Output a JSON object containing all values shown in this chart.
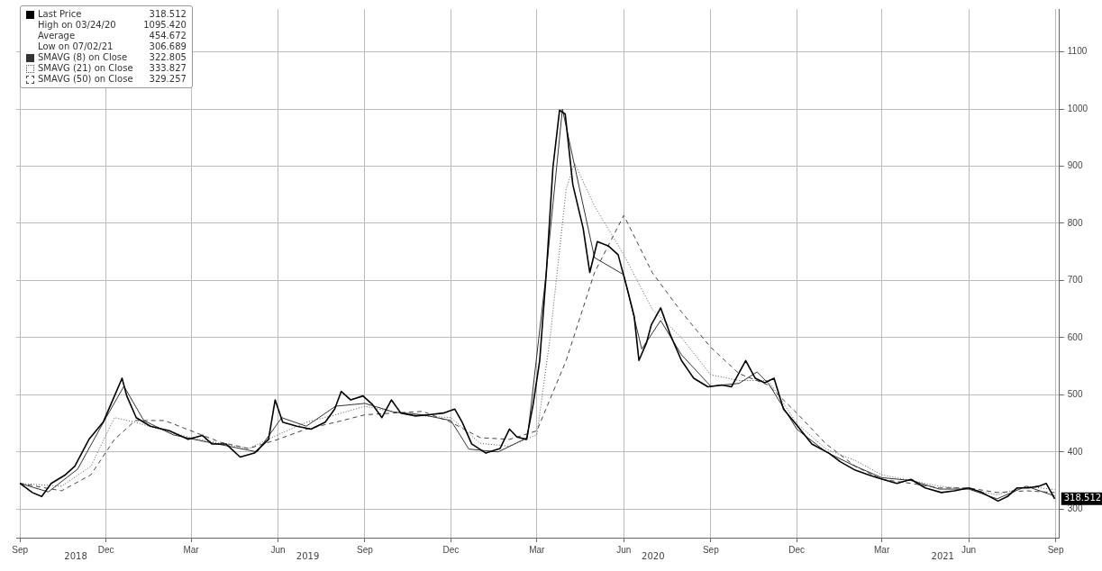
{
  "chart_data": {
    "type": "line",
    "grid": true,
    "legend": "top left",
    "marker": "none",
    "ylim": [
      250,
      1175
    ],
    "yticks": [
      300,
      400,
      500,
      600,
      700,
      800,
      900,
      1000,
      1100
    ],
    "xlim": [
      "2018-08-28",
      "2021-09-05"
    ],
    "xticks": [
      {
        "value": "2018-09-01",
        "label": "Sep"
      },
      {
        "value": "2018-12-01",
        "label": "Dec"
      },
      {
        "value": "2019-03-01",
        "label": "Mar"
      },
      {
        "value": "2019-06-01",
        "label": "Jun"
      },
      {
        "value": "2019-09-01",
        "label": "Sep"
      },
      {
        "value": "2019-12-01",
        "label": "Dec"
      },
      {
        "value": "2020-03-01",
        "label": "Mar"
      },
      {
        "value": "2020-06-01",
        "label": "Jun"
      },
      {
        "value": "2020-09-01",
        "label": "Sep"
      },
      {
        "value": "2020-12-01",
        "label": "Dec"
      },
      {
        "value": "2021-03-01",
        "label": "Mar"
      },
      {
        "value": "2021-06-01",
        "label": "Jun"
      },
      {
        "value": "2021-09-01",
        "label": "Sep"
      }
    ],
    "annotations": [
      "318.512",
      "High on 03/24/20",
      "1095.420",
      "Average",
      "454.672",
      "Low on 07/02/21",
      "306.689",
      "322.805",
      "333.827",
      "329.257",
      "318.512",
      "2018",
      "2019",
      "2020",
      "2021"
    ],
    "series": [
      {
        "name": "Last Price",
        "color": "#000000",
        "line_style": "solid",
        "x": [
          "2018-09-01",
          "2018-09-14",
          "2018-09-24",
          "2018-10-04",
          "2018-10-19",
          "2018-10-29",
          "2018-11-13",
          "2018-11-28",
          "2018-12-10",
          "2018-12-18",
          "2018-12-23",
          "2019-01-02",
          "2019-01-17",
          "2019-02-06",
          "2019-02-26",
          "2019-03-13",
          "2019-03-23",
          "2019-04-07",
          "2019-04-22",
          "2019-05-07",
          "2019-05-22",
          "2019-05-29",
          "2019-06-06",
          "2019-06-21",
          "2019-07-06",
          "2019-07-21",
          "2019-07-31",
          "2019-08-07",
          "2019-08-17",
          "2019-08-30",
          "2019-09-09",
          "2019-09-19",
          "2019-09-29",
          "2019-10-09",
          "2019-10-24",
          "2019-11-08",
          "2019-11-23",
          "2019-12-05",
          "2019-12-13",
          "2019-12-23",
          "2020-01-07",
          "2020-01-22",
          "2020-02-01",
          "2020-02-09",
          "2020-02-19",
          "2020-02-26",
          "2020-03-04",
          "2020-03-11",
          "2020-03-18",
          "2020-03-25",
          "2020-03-31",
          "2020-04-08",
          "2020-04-19",
          "2020-04-26",
          "2020-05-04",
          "2020-05-16",
          "2020-05-26",
          "2020-06-05",
          "2020-06-12",
          "2020-06-17",
          "2020-06-25",
          "2020-06-30",
          "2020-07-10",
          "2020-07-20",
          "2020-08-01",
          "2020-08-14",
          "2020-08-29",
          "2020-09-13",
          "2020-09-23",
          "2020-10-08",
          "2020-10-18",
          "2020-10-28",
          "2020-11-07",
          "2020-11-17",
          "2020-12-02",
          "2020-12-17",
          "2021-01-04",
          "2021-01-16",
          "2021-02-01",
          "2021-02-15",
          "2021-03-02",
          "2021-03-17",
          "2021-04-01",
          "2021-04-16",
          "2021-05-03",
          "2021-05-17",
          "2021-06-01",
          "2021-06-15",
          "2021-07-02",
          "2021-07-12",
          "2021-07-22",
          "2021-08-03",
          "2021-08-14",
          "2021-08-22",
          "2021-08-31"
        ],
        "values": [
          345,
          329,
          322,
          345,
          360,
          375,
          422,
          452,
          498,
          529,
          498,
          460,
          445,
          437,
          422,
          429,
          414,
          414,
          391,
          398,
          422,
          491,
          452,
          445,
          440,
          452,
          475,
          506,
          491,
          498,
          483,
          460,
          491,
          468,
          463,
          465,
          468,
          475,
          452,
          414,
          398,
          406,
          440,
          426,
          422,
          483,
          560,
          714,
          898,
          998,
          991,
          868,
          791,
          714,
          768,
          760,
          745,
          683,
          637,
          560,
          591,
          622,
          652,
          606,
          560,
          529,
          514,
          517,
          514,
          560,
          529,
          521,
          529,
          475,
          445,
          414,
          398,
          383,
          368,
          360,
          352,
          345,
          352,
          337,
          329,
          332,
          337,
          329,
          314,
          322,
          337,
          337,
          340,
          345,
          318
        ]
      },
      {
        "name": "SMAVG (8)  on Close",
        "color": "#333333",
        "line_style": "solid",
        "x": [
          "2018-09-01",
          "2018-10-01",
          "2018-11-01",
          "2018-12-01",
          "2018-12-20",
          "2019-01-10",
          "2019-02-10",
          "2019-03-10",
          "2019-04-10",
          "2019-05-10",
          "2019-06-05",
          "2019-07-01",
          "2019-08-01",
          "2019-09-01",
          "2019-10-01",
          "2019-11-01",
          "2019-12-01",
          "2019-12-20",
          "2020-01-20",
          "2020-02-20",
          "2020-03-10",
          "2020-03-28",
          "2020-04-10",
          "2020-05-01",
          "2020-06-01",
          "2020-06-20",
          "2020-07-10",
          "2020-08-01",
          "2020-09-01",
          "2020-10-01",
          "2020-10-20",
          "2020-11-01",
          "2020-12-01",
          "2021-01-01",
          "2021-02-01",
          "2021-03-01",
          "2021-04-01",
          "2021-05-01",
          "2021-06-01",
          "2021-07-01",
          "2021-08-01",
          "2021-08-31"
        ],
        "values": [
          345,
          330,
          370,
          460,
          515,
          455,
          430,
          420,
          410,
          400,
          460,
          445,
          480,
          485,
          470,
          465,
          455,
          405,
          400,
          425,
          700,
          1000,
          900,
          740,
          710,
          580,
          630,
          570,
          515,
          520,
          540,
          520,
          440,
          400,
          375,
          355,
          350,
          335,
          335,
          318,
          340,
          323
        ]
      },
      {
        "name": "SMAVG (21)  on Close",
        "color": "#555555",
        "line_style": "dotted",
        "x": [
          "2018-09-01",
          "2018-10-15",
          "2018-11-15",
          "2018-12-10",
          "2019-01-01",
          "2019-02-01",
          "2019-03-01",
          "2019-04-01",
          "2019-05-01",
          "2019-06-01",
          "2019-07-01",
          "2019-08-01",
          "2019-09-01",
          "2019-10-01",
          "2019-11-01",
          "2019-12-01",
          "2020-01-01",
          "2020-02-01",
          "2020-03-01",
          "2020-03-15",
          "2020-04-01",
          "2020-04-10",
          "2020-05-01",
          "2020-06-01",
          "2020-07-01",
          "2020-08-01",
          "2020-09-01",
          "2020-10-01",
          "2020-11-01",
          "2020-12-01",
          "2021-01-01",
          "2021-02-01",
          "2021-03-01",
          "2021-04-01",
          "2021-05-01",
          "2021-06-01",
          "2021-07-01",
          "2021-08-01",
          "2021-08-31"
        ],
        "values": [
          345,
          340,
          375,
          460,
          452,
          437,
          425,
          415,
          406,
          430,
          452,
          465,
          480,
          470,
          463,
          460,
          415,
          410,
          430,
          600,
          860,
          905,
          830,
          745,
          650,
          600,
          535,
          525,
          525,
          450,
          405,
          385,
          360,
          350,
          340,
          335,
          325,
          340,
          334
        ]
      },
      {
        "name": "SMAVG (50)  on Close",
        "color": "#444444",
        "line_style": "dashed",
        "x": [
          "2018-09-01",
          "2018-10-15",
          "2018-11-15",
          "2018-12-10",
          "2019-01-01",
          "2019-02-01",
          "2019-03-01",
          "2019-04-01",
          "2019-05-01",
          "2019-06-01",
          "2019-07-01",
          "2019-08-01",
          "2019-09-01",
          "2019-10-01",
          "2019-11-01",
          "2019-12-01",
          "2020-01-01",
          "2020-02-01",
          "2020-03-01",
          "2020-04-01",
          "2020-05-01",
          "2020-06-01",
          "2020-07-01",
          "2020-08-01",
          "2020-09-01",
          "2020-10-01",
          "2020-11-01",
          "2020-12-01",
          "2021-01-01",
          "2021-02-01",
          "2021-03-01",
          "2021-04-01",
          "2021-05-01",
          "2021-06-01",
          "2021-07-01",
          "2021-08-01",
          "2021-08-31"
        ],
        "values": [
          345,
          332,
          360,
          422,
          455,
          455,
          437,
          417,
          406,
          422,
          440,
          452,
          465,
          468,
          471,
          452,
          425,
          422,
          437,
          560,
          714,
          814,
          714,
          645,
          583,
          537,
          517,
          468,
          414,
          375,
          352,
          345,
          337,
          337,
          329,
          332,
          329
        ]
      }
    ]
  }
}
